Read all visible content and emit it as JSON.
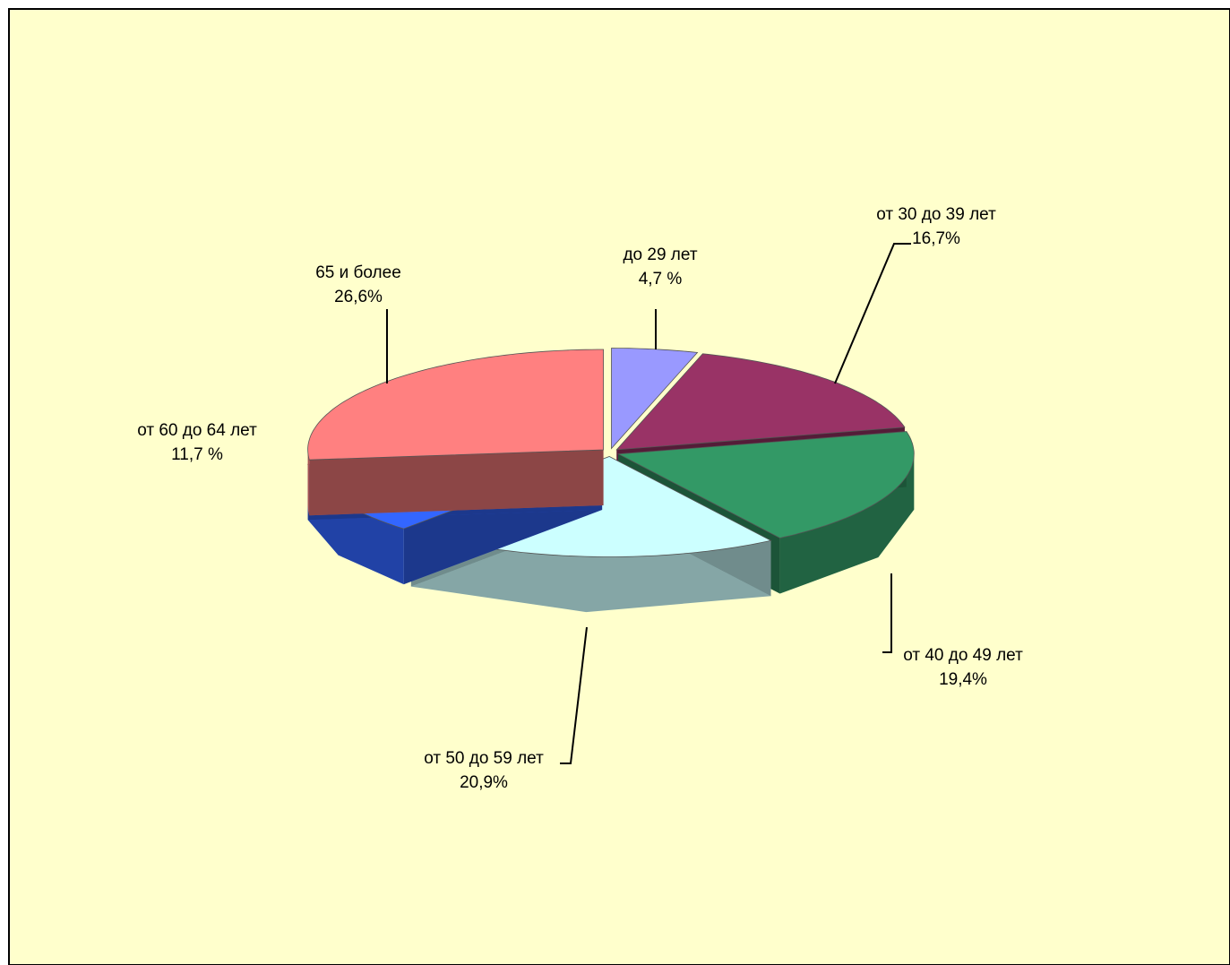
{
  "chart_data": {
    "type": "pie3d",
    "categories": [
      "до 29 лет",
      "от 30 до 39 лет",
      "от 40 до 49 лет",
      "от 50 до 59 лет",
      "от 60 до 64 лет",
      "65 и более"
    ],
    "values": [
      4.7,
      16.7,
      19.4,
      20.9,
      11.7,
      26.6
    ],
    "value_labels": [
      "4,7 %",
      "16,7%",
      "19,4%",
      "20,9%",
      "11,7 %",
      "26,6%"
    ],
    "colors": [
      "#9999ff",
      "#993366",
      "#339966",
      "#ccffff",
      "#3366ff",
      "#ff8080"
    ]
  }
}
